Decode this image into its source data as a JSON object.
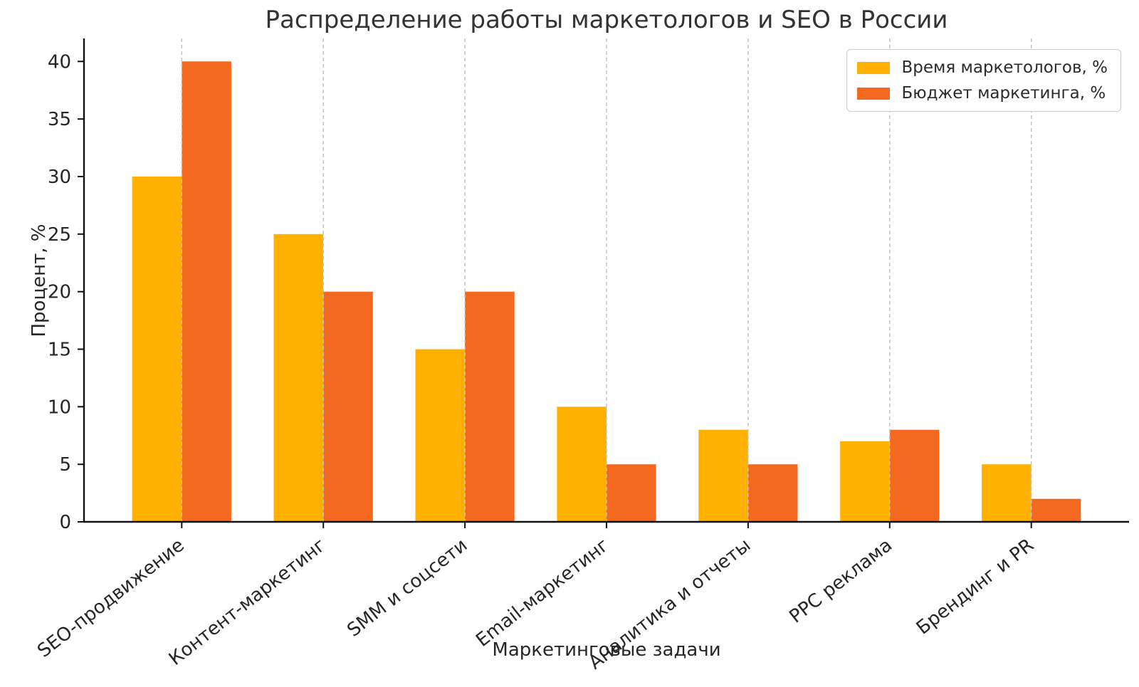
{
  "chart_data": {
    "type": "bar",
    "title": "Распределение работы маркетологов и SEO в России",
    "xlabel": "Маркетинговые задачи",
    "ylabel": "Процент, %",
    "categories": [
      "SEO-продвижение",
      "Контент-маркетинг",
      "SMM и соцсети",
      "Email-маркетинг",
      "Аналитика и отчеты",
      "PPC реклама",
      "Брендинг и PR"
    ],
    "series": [
      {
        "name": "Время маркетологов, %",
        "color": "#FFB000",
        "values": [
          30,
          25,
          15,
          10,
          8,
          7,
          5
        ]
      },
      {
        "name": "Бюджет маркетинга, %",
        "color": "#F2691F",
        "values": [
          40,
          20,
          20,
          5,
          5,
          8,
          2
        ]
      }
    ],
    "yticks": [
      0,
      5,
      10,
      15,
      20,
      25,
      30,
      35,
      40
    ],
    "ylim": [
      0,
      42
    ],
    "grid": "vertical-dashed",
    "grid_color": "#c3c3c3",
    "axis_color": "#111111",
    "text_color": "#262626",
    "legend_position": "upper-right",
    "bar_width": 0.35,
    "x_pad": 0.69,
    "xlabel_rotation_deg": 38
  }
}
